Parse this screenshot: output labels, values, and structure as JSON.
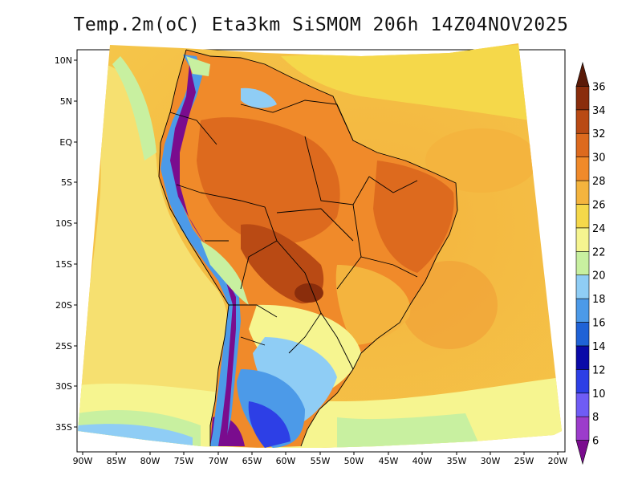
{
  "title": "Temp.2m(oC) Eta3km SiSMOM 206h 14Z04NOV2025",
  "chart_data": {
    "type": "heatmap",
    "title": "Temp.2m(oC) Eta3km SiSMOM 206h 14Z04NOV2025",
    "variable": "2 m air temperature",
    "units": "oC",
    "model": "Eta3km SiSMOM",
    "forecast_hour": "206h",
    "valid_time": "14Z04NOV2025",
    "lon_range": [
      -91,
      -20
    ],
    "lat_range": [
      -38,
      12
    ],
    "lon_ticks": [
      "90W",
      "85W",
      "80W",
      "75W",
      "70W",
      "65W",
      "60W",
      "55W",
      "50W",
      "45W",
      "40W",
      "35W",
      "30W",
      "25W",
      "20W"
    ],
    "lat_ticks": [
      "10N",
      "5N",
      "EQ",
      "5S",
      "10S",
      "15S",
      "20S",
      "25S",
      "30S",
      "35S"
    ],
    "colorbar": {
      "levels": [
        "6",
        "8",
        "10",
        "12",
        "14",
        "16",
        "18",
        "20",
        "22",
        "24",
        "26",
        "28",
        "30",
        "32",
        "34",
        "36"
      ],
      "colors": [
        "#7a0c8e",
        "#9c3ccb",
        "#6f5cf5",
        "#2d3fe6",
        "#0a0aa8",
        "#1f62d6",
        "#4c9ae8",
        "#8fcdf5",
        "#c8f0a0",
        "#f6f590",
        "#f5d84a",
        "#f4b43e",
        "#f08a2a",
        "#dd6a1e",
        "#b94a14",
        "#8a2d0c",
        "#5a1a08"
      ]
    }
  }
}
